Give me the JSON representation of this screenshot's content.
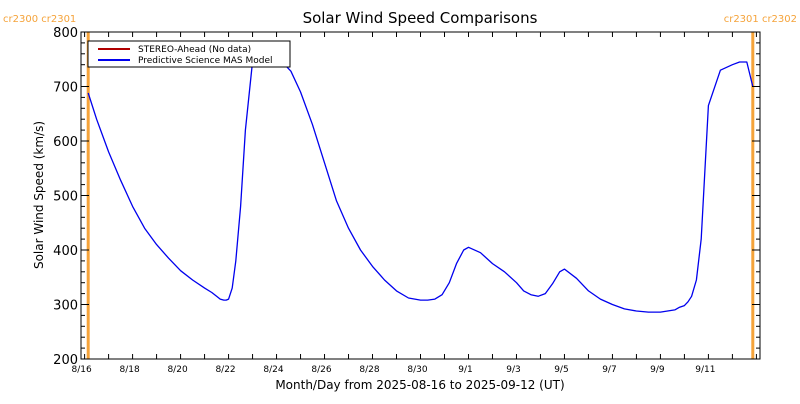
{
  "chart_data": {
    "type": "line",
    "title": "Solar Wind Speed Comparisons",
    "xlabel": "Month/Day from 2025-08-16 to 2025-09-12 (UT)",
    "ylabel": "Solar Wind Speed (km/s)",
    "ylim": [
      200,
      800
    ],
    "xlim_days": [
      -0.15,
      28.15
    ],
    "y_ticks": [
      200,
      300,
      400,
      500,
      600,
      700,
      800
    ],
    "y_minor_step": 20,
    "x_ticks": [
      {
        "day": 0,
        "label": "8/16"
      },
      {
        "day": 2,
        "label": "8/18"
      },
      {
        "day": 4,
        "label": "8/20"
      },
      {
        "day": 6,
        "label": "8/22"
      },
      {
        "day": 8,
        "label": "8/24"
      },
      {
        "day": 10,
        "label": "8/26"
      },
      {
        "day": 12,
        "label": "8/28"
      },
      {
        "day": 14,
        "label": "8/30"
      },
      {
        "day": 16,
        "label": "9/1"
      },
      {
        "day": 18,
        "label": "9/3"
      },
      {
        "day": 20,
        "label": "9/5"
      },
      {
        "day": 22,
        "label": "9/7"
      },
      {
        "day": 24,
        "label": "9/9"
      },
      {
        "day": 26,
        "label": "9/11"
      }
    ],
    "x_minor_step_days": 1,
    "legend": {
      "position": "top-left",
      "entries": [
        {
          "label": "STEREO-Ahead (No data)",
          "color": "#b00000"
        },
        {
          "label": "Predictive Science MAS Model",
          "color": "#0000ee"
        }
      ]
    },
    "carrington_markers": [
      {
        "day": 0.15,
        "label": "cr2300 cr2301",
        "align": "left"
      },
      {
        "day": 27.85,
        "label": "cr2301 cr2302",
        "align": "right"
      }
    ],
    "marker_color": "#f5a33a",
    "series": [
      {
        "name": "Predictive Science MAS Model",
        "color": "#0000ee",
        "x": [
          0.15,
          0.5,
          1.0,
          1.5,
          2.0,
          2.5,
          3.0,
          3.5,
          4.0,
          4.5,
          5.0,
          5.3,
          5.5,
          5.65,
          5.8,
          5.9,
          6.0,
          6.15,
          6.3,
          6.5,
          6.7,
          7.0,
          7.5,
          8.0,
          8.3,
          8.6,
          9.0,
          9.5,
          10.0,
          10.5,
          11.0,
          11.5,
          12.0,
          12.5,
          13.0,
          13.5,
          14.0,
          14.3,
          14.6,
          14.9,
          15.2,
          15.5,
          15.8,
          16.0,
          16.5,
          17.0,
          17.5,
          18.0,
          18.3,
          18.6,
          18.9,
          19.2,
          19.5,
          19.8,
          20.0,
          20.5,
          21.0,
          21.5,
          22.0,
          22.5,
          23.0,
          23.5,
          24.0,
          24.3,
          24.6,
          24.8,
          25.0,
          25.15,
          25.3,
          25.5,
          25.7,
          26.0,
          26.5,
          27.0,
          27.3,
          27.6,
          27.85
        ],
        "values": [
          688,
          640,
          580,
          528,
          480,
          440,
          410,
          385,
          362,
          345,
          330,
          322,
          315,
          310,
          308,
          308,
          310,
          330,
          380,
          480,
          620,
          745,
          746,
          745,
          742,
          728,
          690,
          630,
          560,
          490,
          440,
          400,
          370,
          345,
          325,
          312,
          308,
          308,
          310,
          318,
          340,
          375,
          400,
          405,
          395,
          375,
          360,
          340,
          325,
          318,
          315,
          320,
          338,
          360,
          365,
          348,
          325,
          310,
          300,
          292,
          288,
          286,
          286,
          288,
          290,
          295,
          298,
          305,
          315,
          345,
          420,
          665,
          730,
          740,
          745,
          745,
          700
        ]
      },
      {
        "name": "STEREO-Ahead (No data)",
        "color": "#b00000",
        "x": [],
        "values": []
      }
    ]
  }
}
